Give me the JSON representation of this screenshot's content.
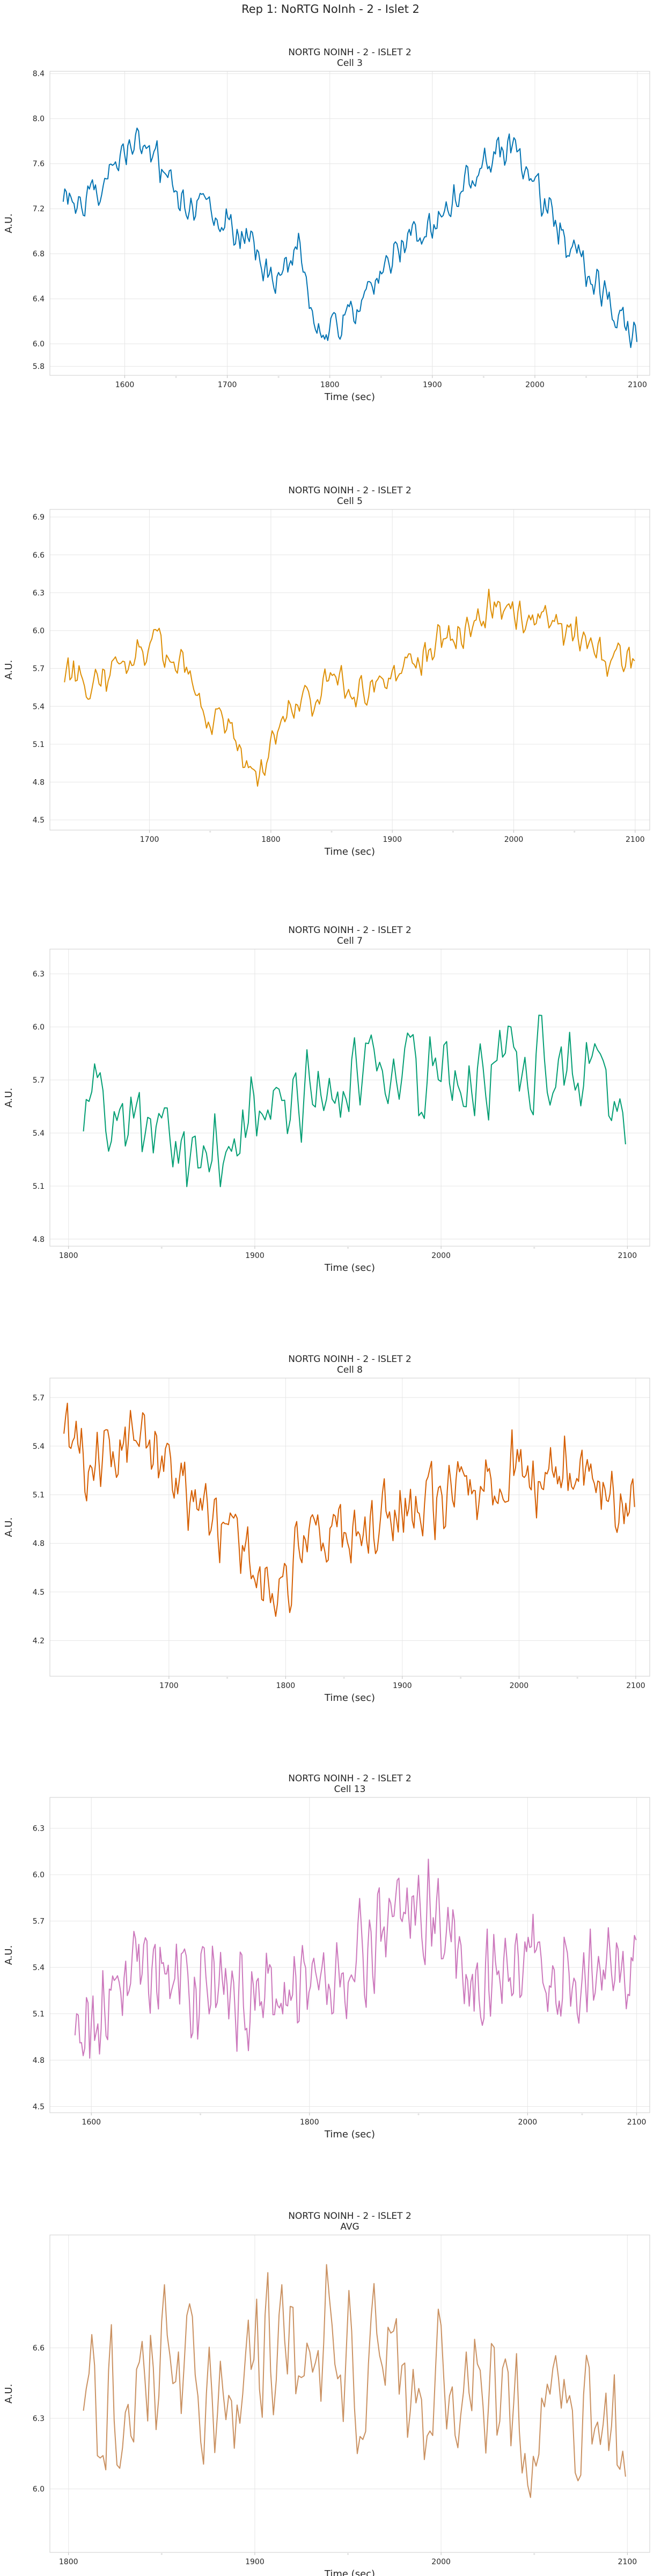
{
  "figure": {
    "suptitle": "Rep 1: NoRTG NoInh - 2 - Islet 2"
  },
  "chart_data": [
    {
      "type": "line",
      "title": "NORTG NOINH - 2 - ISLET 2",
      "subtitle": "Cell 3",
      "xlabel": "Time (sec)",
      "ylabel": "A.U.",
      "color": "#0173b2",
      "xlim": [
        1527,
        2112
      ],
      "ylim": [
        5.72,
        8.42
      ],
      "xticks": [
        1600,
        1700,
        1800,
        1900,
        2000,
        2100
      ],
      "yticks": [
        5.8,
        6.0,
        6.4,
        6.8,
        7.2,
        7.6,
        8.0,
        8.4
      ],
      "ytick_labels": [
        "5.8",
        "6.0",
        "6.4",
        "6.8",
        "7.2",
        "7.6",
        "8.0",
        "8.4"
      ],
      "grid": true,
      "x_start": 1540,
      "x_end": 2100,
      "anchors": [
        [
          1540,
          7.3
        ],
        [
          1560,
          7.28
        ],
        [
          1580,
          7.4
        ],
        [
          1590,
          7.55
        ],
        [
          1600,
          7.65
        ],
        [
          1610,
          7.85
        ],
        [
          1620,
          7.7
        ],
        [
          1640,
          7.55
        ],
        [
          1655,
          7.2
        ],
        [
          1670,
          7.25
        ],
        [
          1690,
          7.15
        ],
        [
          1710,
          7.0
        ],
        [
          1730,
          6.8
        ],
        [
          1745,
          6.55
        ],
        [
          1760,
          6.7
        ],
        [
          1770,
          7.05
        ],
        [
          1780,
          6.3
        ],
        [
          1795,
          6.05
        ],
        [
          1810,
          6.2
        ],
        [
          1830,
          6.3
        ],
        [
          1850,
          6.6
        ],
        [
          1870,
          6.9
        ],
        [
          1890,
          7.0
        ],
        [
          1910,
          7.15
        ],
        [
          1930,
          7.4
        ],
        [
          1950,
          7.55
        ],
        [
          1965,
          7.75
        ],
        [
          1980,
          7.7
        ],
        [
          1995,
          7.5
        ],
        [
          2010,
          7.2
        ],
        [
          2030,
          6.95
        ],
        [
          2050,
          6.65
        ],
        [
          2070,
          6.4
        ],
        [
          2085,
          6.2
        ],
        [
          2100,
          6.05
        ]
      ],
      "noise": 0.2,
      "seed": 3
    },
    {
      "type": "line",
      "title": "NORTG NOINH - 2 - ISLET 2",
      "subtitle": "Cell 5",
      "xlabel": "Time (sec)",
      "ylabel": "A.U.",
      "color": "#de8f05",
      "xlim": [
        1618,
        2112
      ],
      "ylim": [
        4.42,
        6.96
      ],
      "xticks": [
        1700,
        1800,
        1900,
        2000,
        2100
      ],
      "yticks": [
        4.5,
        4.8,
        5.1,
        5.4,
        5.7,
        6.0,
        6.3,
        6.6,
        6.9
      ],
      "ytick_labels": [
        "4.5",
        "4.8",
        "5.1",
        "5.4",
        "5.7",
        "6.0",
        "6.3",
        "6.6",
        "6.9"
      ],
      "grid": true,
      "x_start": 1630,
      "x_end": 2100,
      "anchors": [
        [
          1630,
          5.65
        ],
        [
          1650,
          5.55
        ],
        [
          1670,
          5.7
        ],
        [
          1690,
          5.85
        ],
        [
          1710,
          5.85
        ],
        [
          1730,
          5.75
        ],
        [
          1745,
          5.4
        ],
        [
          1760,
          5.2
        ],
        [
          1775,
          5.05
        ],
        [
          1790,
          4.8
        ],
        [
          1800,
          5.1
        ],
        [
          1815,
          5.45
        ],
        [
          1830,
          5.4
        ],
        [
          1850,
          5.6
        ],
        [
          1870,
          5.5
        ],
        [
          1890,
          5.55
        ],
        [
          1910,
          5.65
        ],
        [
          1930,
          5.85
        ],
        [
          1950,
          5.95
        ],
        [
          1970,
          6.1
        ],
        [
          1990,
          6.2
        ],
        [
          2010,
          6.05
        ],
        [
          2030,
          6.1
        ],
        [
          2050,
          5.95
        ],
        [
          2070,
          5.85
        ],
        [
          2090,
          5.75
        ],
        [
          2100,
          5.75
        ]
      ],
      "noise": 0.2,
      "seed": 5
    },
    {
      "type": "line",
      "title": "NORTG NOINH - 2 - ISLET 2",
      "subtitle": "Cell 7",
      "xlabel": "Time (sec)",
      "ylabel": "A.U.",
      "color": "#029e73",
      "xlim": [
        1790,
        2112
      ],
      "ylim": [
        4.76,
        6.44
      ],
      "xticks": [
        1800,
        1900,
        2000,
        2100
      ],
      "yticks": [
        4.8,
        5.1,
        5.4,
        5.7,
        6.0,
        6.3
      ],
      "ytick_labels": [
        "4.8",
        "5.1",
        "5.4",
        "5.7",
        "6.0",
        "6.3"
      ],
      "grid": true,
      "x_start": 1808,
      "x_end": 2100,
      "anchors": [
        [
          1808,
          5.55
        ],
        [
          1830,
          5.45
        ],
        [
          1850,
          5.4
        ],
        [
          1865,
          5.25
        ],
        [
          1880,
          5.35
        ],
        [
          1900,
          5.45
        ],
        [
          1920,
          5.5
        ],
        [
          1935,
          5.65
        ],
        [
          1950,
          5.75
        ],
        [
          1970,
          5.7
        ],
        [
          1990,
          5.65
        ],
        [
          2010,
          5.7
        ],
        [
          2030,
          5.75
        ],
        [
          2050,
          5.75
        ],
        [
          2070,
          5.8
        ],
        [
          2090,
          5.65
        ],
        [
          2100,
          5.6
        ]
      ],
      "noise": 0.35,
      "seed": 7
    },
    {
      "type": "line",
      "title": "NORTG NOINH - 2 - ISLET 2",
      "subtitle": "Cell 8",
      "xlabel": "Time (sec)",
      "ylabel": "A.U.",
      "color": "#d55e00",
      "xlim": [
        1598,
        2112
      ],
      "ylim": [
        3.98,
        5.82
      ],
      "xticks": [
        1700,
        1800,
        1900,
        2000,
        2100
      ],
      "yticks": [
        4.2,
        4.5,
        4.8,
        5.1,
        5.4,
        5.7
      ],
      "ytick_labels": [
        "4.2",
        "4.5",
        "4.8",
        "5.1",
        "5.4",
        "5.7"
      ],
      "grid": true,
      "x_start": 1610,
      "x_end": 2100,
      "anchors": [
        [
          1610,
          5.45
        ],
        [
          1630,
          5.3
        ],
        [
          1650,
          5.35
        ],
        [
          1670,
          5.4
        ],
        [
          1690,
          5.3
        ],
        [
          1710,
          5.15
        ],
        [
          1725,
          5.05
        ],
        [
          1740,
          4.95
        ],
        [
          1760,
          4.85
        ],
        [
          1775,
          4.6
        ],
        [
          1790,
          4.45
        ],
        [
          1800,
          4.6
        ],
        [
          1815,
          4.8
        ],
        [
          1835,
          4.85
        ],
        [
          1860,
          4.85
        ],
        [
          1880,
          4.95
        ],
        [
          1900,
          5.0
        ],
        [
          1930,
          5.05
        ],
        [
          1960,
          5.15
        ],
        [
          1990,
          5.25
        ],
        [
          2020,
          5.2
        ],
        [
          2050,
          5.3
        ],
        [
          2070,
          5.2
        ],
        [
          2090,
          5.0
        ],
        [
          2100,
          4.95
        ]
      ],
      "noise": 0.28,
      "seed": 8
    },
    {
      "type": "line",
      "title": "NORTG NOINH - 2 - ISLET 2",
      "subtitle": "Cell 13",
      "xlabel": "Time (sec)",
      "ylabel": "A.U.",
      "color": "#cc78bc",
      "xlim": [
        1562,
        2112
      ],
      "ylim": [
        4.46,
        6.5
      ],
      "xticks": [
        1600,
        1800,
        2000,
        2100
      ],
      "yticks": [
        4.5,
        4.8,
        5.1,
        5.4,
        5.7,
        6.0,
        6.3
      ],
      "ytick_labels": [
        "4.5",
        "4.8",
        "5.1",
        "5.4",
        "5.7",
        "6.0",
        "6.3"
      ],
      "grid": true,
      "x_start": 1585,
      "x_end": 2100,
      "anchors": [
        [
          1585,
          4.8
        ],
        [
          1600,
          5.05
        ],
        [
          1620,
          5.3
        ],
        [
          1650,
          5.35
        ],
        [
          1680,
          5.3
        ],
        [
          1710,
          5.3
        ],
        [
          1730,
          5.15
        ],
        [
          1750,
          5.1
        ],
        [
          1770,
          5.2
        ],
        [
          1800,
          5.35
        ],
        [
          1830,
          5.35
        ],
        [
          1860,
          5.5
        ],
        [
          1880,
          5.7
        ],
        [
          1900,
          5.85
        ],
        [
          1920,
          5.75
        ],
        [
          1940,
          5.4
        ],
        [
          1970,
          5.35
        ],
        [
          2000,
          5.4
        ],
        [
          2030,
          5.3
        ],
        [
          2060,
          5.3
        ],
        [
          2080,
          5.45
        ],
        [
          2100,
          5.55
        ]
      ],
      "noise": 0.42,
      "seed": 13
    },
    {
      "type": "line",
      "title": "NORTG NOINH - 2 - ISLET 2",
      "subtitle": "AVG",
      "xlabel": "Time (sec)",
      "ylabel": "A.U.",
      "color": "#ca9161",
      "xlim": [
        1790,
        2112
      ],
      "ylim": [
        5.73,
        7.08
      ],
      "xticks": [
        1800,
        1900,
        2000,
        2100
      ],
      "yticks": [
        6.0,
        6.3,
        6.6
      ],
      "ytick_labels": [
        "6.0",
        "6.3",
        "6.6"
      ],
      "grid": true,
      "x_start": 1808,
      "x_end": 2100,
      "anchors": [
        [
          1808,
          6.35
        ],
        [
          1830,
          6.45
        ],
        [
          1850,
          6.45
        ],
        [
          1870,
          6.5
        ],
        [
          1890,
          6.45
        ],
        [
          1905,
          6.55
        ],
        [
          1920,
          6.6
        ],
        [
          1940,
          6.6
        ],
        [
          1960,
          6.55
        ],
        [
          1980,
          6.45
        ],
        [
          2000,
          6.4
        ],
        [
          2020,
          6.35
        ],
        [
          2040,
          6.3
        ],
        [
          2060,
          6.3
        ],
        [
          2080,
          6.2
        ],
        [
          2100,
          6.15
        ]
      ],
      "noise": 0.45,
      "seed": 21
    }
  ]
}
